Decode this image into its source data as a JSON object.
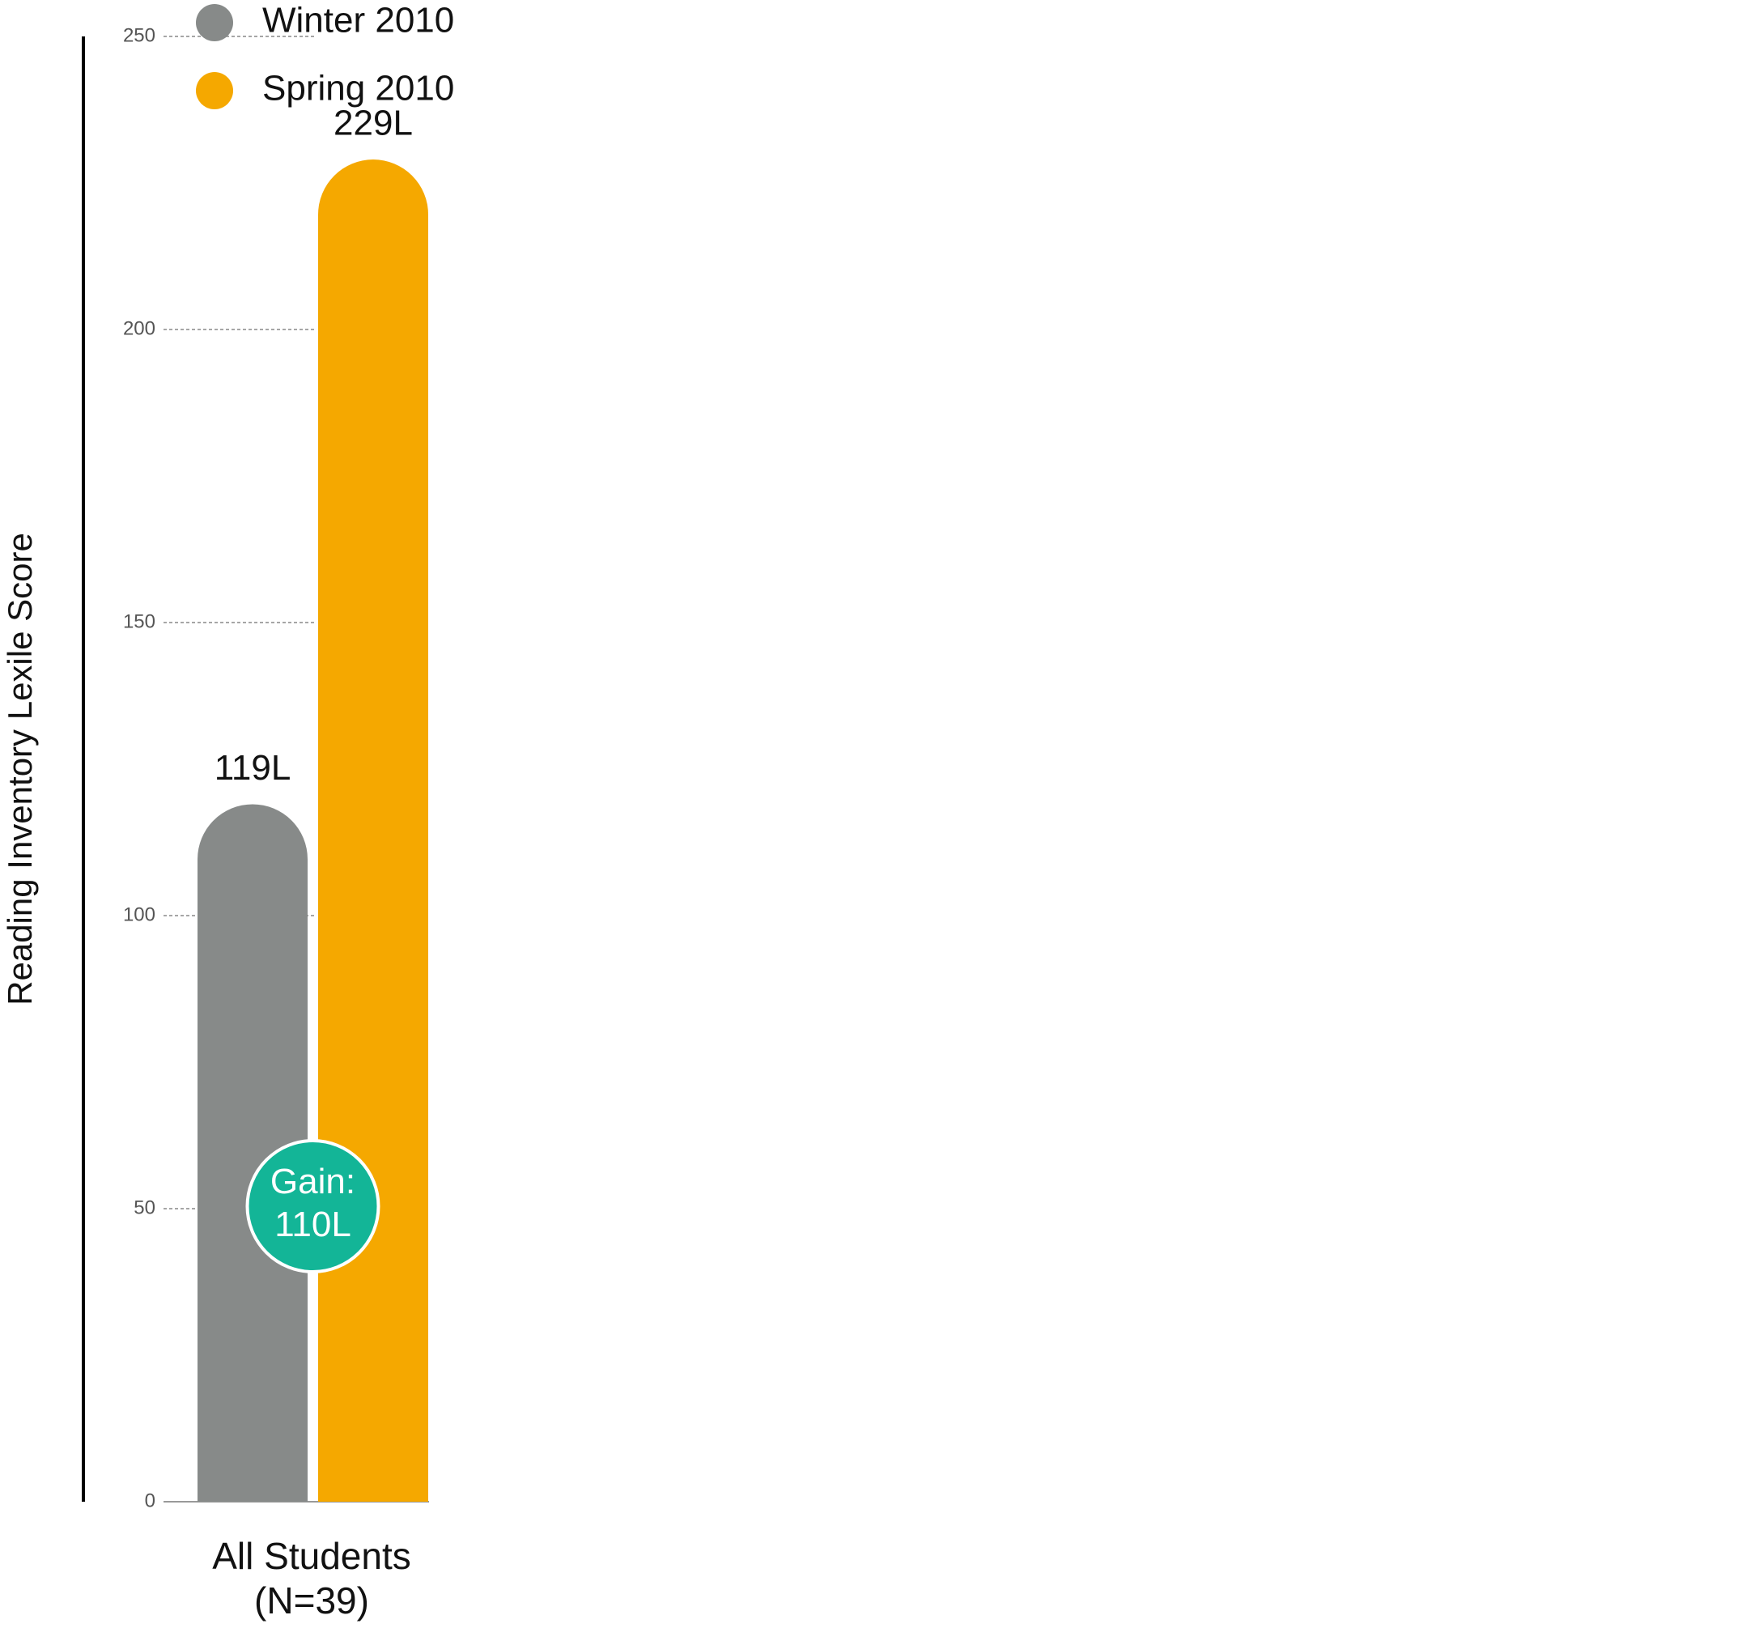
{
  "chart_data": {
    "type": "bar",
    "y_label": "Reading Inventory Lexile Score",
    "categories": [
      "All Students (N=39)"
    ],
    "series": [
      {
        "name": "Winter 2010",
        "color": "#878a89",
        "values": [
          119
        ],
        "value_labels": [
          "119L"
        ]
      },
      {
        "name": "Spring 2010",
        "color": "#f5a800",
        "values": [
          229
        ],
        "value_labels": [
          "229L"
        ]
      }
    ],
    "annotation": "Gain: 110L",
    "annotation_color": "#13b597",
    "ylim": [
      0,
      250
    ],
    "yticks": [
      0,
      50,
      100,
      150,
      200,
      250
    ],
    "grid": true,
    "legend": "top-left"
  }
}
